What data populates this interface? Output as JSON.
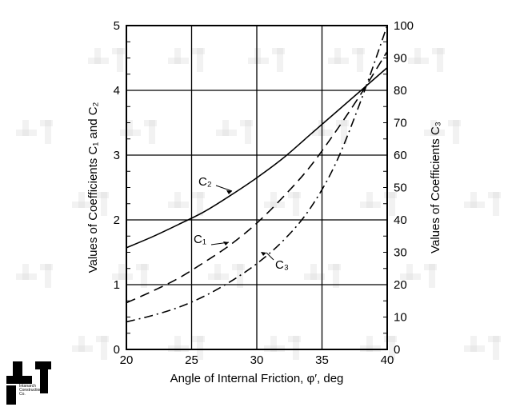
{
  "chart_data": {
    "type": "line",
    "title": "",
    "xlabel": "Angle of Internal Friction, φ′, deg",
    "ylabel": "Values of Coefficients C₁ and C₂",
    "y2label": "Values of Coefficients C₃",
    "xlim": [
      20,
      40
    ],
    "ylim": [
      0,
      5
    ],
    "y2lim": [
      0,
      100
    ],
    "xticks": [
      "20",
      "25",
      "30",
      "35",
      "40"
    ],
    "yticks": [
      "0",
      "1",
      "2",
      "3",
      "4",
      "5"
    ],
    "y2ticks": [
      "0",
      "10",
      "20",
      "30",
      "40",
      "50",
      "60",
      "70",
      "80",
      "90",
      "100"
    ],
    "grid": true,
    "series": [
      {
        "name": "C₂",
        "axis": "left",
        "style": "solid",
        "x": [
          20,
          22,
          24,
          26,
          28,
          30,
          32,
          34,
          36,
          38,
          40
        ],
        "y": [
          1.57,
          1.74,
          1.93,
          2.13,
          2.38,
          2.65,
          2.95,
          3.3,
          3.65,
          4.0,
          4.35
        ]
      },
      {
        "name": "C₁",
        "axis": "left",
        "style": "dashed",
        "x": [
          20,
          22,
          24,
          26,
          28,
          30,
          32,
          34,
          36,
          38,
          40
        ],
        "y": [
          0.72,
          0.9,
          1.1,
          1.35,
          1.62,
          1.95,
          2.35,
          2.8,
          3.35,
          3.95,
          4.6
        ]
      },
      {
        "name": "C₃",
        "axis": "right",
        "style": "dashdot",
        "x": [
          20,
          22,
          24,
          26,
          28,
          30,
          32,
          34,
          36,
          38,
          40
        ],
        "y": [
          8.5,
          10.5,
          13.0,
          16.5,
          21.0,
          26.5,
          33.5,
          43.0,
          57.0,
          77.0,
          100.0
        ]
      }
    ]
  },
  "logo": {
    "text": "Intanarch\nConstruction\nCo.",
    "color": "#000000"
  }
}
